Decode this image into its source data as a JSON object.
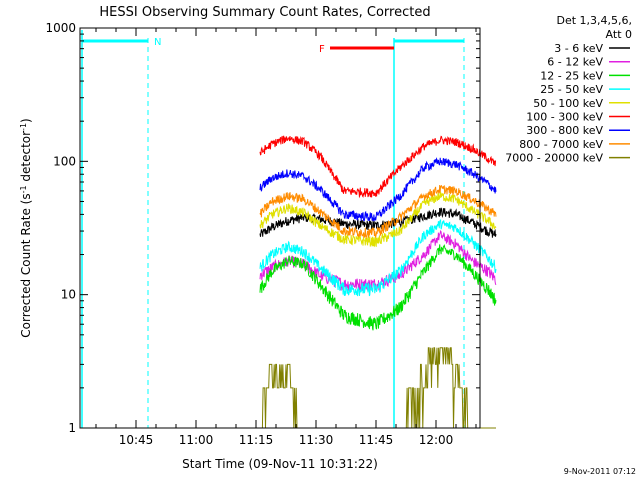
{
  "chart_data": {
    "type": "line",
    "title": "HESSI Observing Summary Count Rates, Corrected",
    "xlabel": "Start Time (09-Nov-11 10:31:22)",
    "ylabel_main": "Corrected Count Rate (s",
    "ylabel_sup1": "-1",
    "ylabel_mid": " detector",
    "ylabel_sup2": "-1",
    "ylabel_end": ")",
    "y_scale": "log",
    "ylim": [
      1,
      1000
    ],
    "xlim_minutes_after_1031": [
      0,
      100
    ],
    "x_ticks": [
      "10:45",
      "11:00",
      "11:15",
      "11:30",
      "11:45",
      "12:00"
    ],
    "y_ticks": [
      "1",
      "10",
      "100",
      "1000"
    ],
    "footer": "9-Nov-2011 07:12",
    "legend": {
      "header1": "Det 1,3,4,5,6,",
      "header2": "Att 0",
      "placement": "right",
      "entries": [
        {
          "label": "3 - 6 keV",
          "color": "#000000"
        },
        {
          "label": "6 - 12 keV",
          "color": "#e020e0"
        },
        {
          "label": "12 - 25 keV",
          "color": "#00e000"
        },
        {
          "label": "25 - 50 keV",
          "color": "#00ffff"
        },
        {
          "label": "50 - 100 keV",
          "color": "#e0e000"
        },
        {
          "label": "100 - 300 keV",
          "color": "#ff0000"
        },
        {
          "label": "300 - 800 keV",
          "color": "#0000ff"
        },
        {
          "label": "800 - 7000 keV",
          "color": "#ff8c00"
        },
        {
          "label": "7000 - 20000 keV",
          "color": "#808000"
        }
      ]
    },
    "flags": {
      "night_label": "N",
      "flare_label": "F",
      "night_color": "#00ffff",
      "flare_color": "#ff0000"
    },
    "series": [
      {
        "color": "#000000",
        "knots": [
          [
            45,
            28
          ],
          [
            48,
            32
          ],
          [
            52,
            36
          ],
          [
            56,
            38
          ],
          [
            60,
            37
          ],
          [
            66,
            34
          ],
          [
            74,
            33
          ],
          [
            80,
            35
          ],
          [
            86,
            39
          ],
          [
            90,
            42
          ],
          [
            94,
            40
          ],
          [
            98,
            35
          ],
          [
            102,
            30
          ],
          [
            104,
            28
          ]
        ]
      },
      {
        "color": "#e020e0",
        "knots": [
          [
            45,
            14
          ],
          [
            48,
            16
          ],
          [
            52,
            18
          ],
          [
            56,
            17
          ],
          [
            60,
            14
          ],
          [
            66,
            12
          ],
          [
            74,
            12
          ],
          [
            80,
            14
          ],
          [
            86,
            20
          ],
          [
            90,
            28
          ],
          [
            94,
            24
          ],
          [
            98,
            18
          ],
          [
            102,
            15
          ],
          [
            104,
            13
          ]
        ]
      },
      {
        "color": "#00e000",
        "knots": [
          [
            45,
            11
          ],
          [
            48,
            15
          ],
          [
            52,
            18
          ],
          [
            56,
            17
          ],
          [
            60,
            12
          ],
          [
            66,
            7
          ],
          [
            74,
            6
          ],
          [
            80,
            8
          ],
          [
            86,
            15
          ],
          [
            90,
            22
          ],
          [
            94,
            20
          ],
          [
            98,
            15
          ],
          [
            102,
            11
          ],
          [
            104,
            9
          ]
        ]
      },
      {
        "color": "#00ffff",
        "knots": [
          [
            45,
            16
          ],
          [
            48,
            20
          ],
          [
            52,
            23
          ],
          [
            56,
            21
          ],
          [
            60,
            16
          ],
          [
            66,
            11
          ],
          [
            74,
            11
          ],
          [
            80,
            15
          ],
          [
            86,
            28
          ],
          [
            90,
            34
          ],
          [
            94,
            32
          ],
          [
            98,
            25
          ],
          [
            102,
            19
          ],
          [
            104,
            16
          ]
        ]
      },
      {
        "color": "#e0e000",
        "knots": [
          [
            45,
            33
          ],
          [
            48,
            40
          ],
          [
            52,
            45
          ],
          [
            56,
            41
          ],
          [
            60,
            33
          ],
          [
            66,
            26
          ],
          [
            74,
            25
          ],
          [
            80,
            30
          ],
          [
            86,
            48
          ],
          [
            90,
            55
          ],
          [
            94,
            52
          ],
          [
            98,
            43
          ],
          [
            102,
            36
          ],
          [
            104,
            32
          ]
        ]
      },
      {
        "color": "#ff0000",
        "knots": [
          [
            45,
            115
          ],
          [
            48,
            135
          ],
          [
            52,
            150
          ],
          [
            56,
            140
          ],
          [
            60,
            110
          ],
          [
            66,
            60
          ],
          [
            74,
            58
          ],
          [
            80,
            90
          ],
          [
            86,
            130
          ],
          [
            90,
            145
          ],
          [
            94,
            140
          ],
          [
            98,
            125
          ],
          [
            102,
            105
          ],
          [
            104,
            95
          ]
        ]
      },
      {
        "color": "#0000ff",
        "knots": [
          [
            45,
            63
          ],
          [
            48,
            75
          ],
          [
            52,
            82
          ],
          [
            56,
            77
          ],
          [
            60,
            62
          ],
          [
            66,
            40
          ],
          [
            74,
            38
          ],
          [
            80,
            55
          ],
          [
            86,
            90
          ],
          [
            90,
            100
          ],
          [
            94,
            95
          ],
          [
            98,
            82
          ],
          [
            102,
            68
          ],
          [
            104,
            60
          ]
        ]
      },
      {
        "color": "#ff8c00",
        "knots": [
          [
            45,
            40
          ],
          [
            48,
            50
          ],
          [
            52,
            55
          ],
          [
            56,
            52
          ],
          [
            60,
            42
          ],
          [
            66,
            30
          ],
          [
            74,
            29
          ],
          [
            80,
            38
          ],
          [
            86,
            55
          ],
          [
            90,
            62
          ],
          [
            94,
            60
          ],
          [
            98,
            52
          ],
          [
            102,
            44
          ],
          [
            104,
            40
          ]
        ]
      }
    ],
    "atten_steps": {
      "color": "#808000",
      "knots": [
        [
          45,
          1
        ],
        [
          46,
          2
        ],
        [
          48,
          3
        ],
        [
          50,
          3
        ],
        [
          52,
          3
        ],
        [
          54,
          2
        ],
        [
          55,
          1
        ],
        [
          60,
          1
        ],
        [
          66,
          1
        ],
        [
          74,
          1
        ],
        [
          80,
          1
        ],
        [
          83,
          2
        ],
        [
          86,
          3
        ],
        [
          88,
          4
        ],
        [
          90,
          4
        ],
        [
          92,
          4
        ],
        [
          94,
          3
        ],
        [
          96,
          2
        ],
        [
          98,
          1
        ],
        [
          104,
          1
        ]
      ]
    }
  }
}
